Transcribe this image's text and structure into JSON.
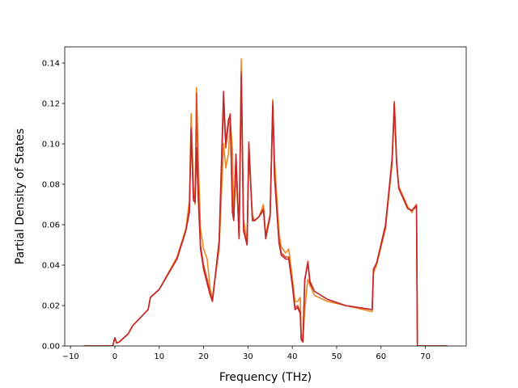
{
  "chart_data": {
    "type": "line",
    "title": "",
    "xlabel": "Frequency (THz)",
    "ylabel": "Partial Density of States",
    "xlim": [
      -11.3,
      79.2
    ],
    "ylim": [
      0.0,
      0.148
    ],
    "grid": false,
    "legend": "none",
    "xticks": [
      -10,
      0,
      10,
      20,
      30,
      40,
      50,
      60,
      70
    ],
    "xtick_labels": [
      "−10",
      "0",
      "10",
      "20",
      "30",
      "40",
      "50",
      "60",
      "70"
    ],
    "yticks": [
      0.0,
      0.02,
      0.04,
      0.06,
      0.08,
      0.1,
      0.12,
      0.14
    ],
    "ytick_labels": [
      "0.00",
      "0.02",
      "0.04",
      "0.06",
      "0.08",
      "0.10",
      "0.12",
      "0.14"
    ],
    "series": [
      {
        "color": "#f0871f",
        "points": [
          [
            -7,
            0.0
          ],
          [
            -0.5,
            0.0
          ],
          [
            0,
            0.004
          ],
          [
            0.4,
            0.0015
          ],
          [
            1,
            0.002
          ],
          [
            3,
            0.006
          ],
          [
            4,
            0.01
          ],
          [
            7.5,
            0.018
          ],
          [
            8,
            0.024
          ],
          [
            10,
            0.028
          ],
          [
            14,
            0.044
          ],
          [
            16,
            0.058
          ],
          [
            16.8,
            0.072
          ],
          [
            17.2,
            0.115
          ],
          [
            17.7,
            0.08
          ],
          [
            18.1,
            0.07
          ],
          [
            18.4,
            0.128
          ],
          [
            18.8,
            0.092
          ],
          [
            19.3,
            0.058
          ],
          [
            20,
            0.048
          ],
          [
            20.8,
            0.043
          ],
          [
            21.5,
            0.028
          ],
          [
            22,
            0.024
          ],
          [
            23.5,
            0.048
          ],
          [
            24.5,
            0.1
          ],
          [
            25,
            0.088
          ],
          [
            25.6,
            0.095
          ],
          [
            26.0,
            0.112
          ],
          [
            26.5,
            0.098
          ],
          [
            26.8,
            0.065
          ],
          [
            27.3,
            0.086
          ],
          [
            28,
            0.056
          ],
          [
            28.5,
            0.142
          ],
          [
            29,
            0.063
          ],
          [
            29.8,
            0.051
          ],
          [
            30.2,
            0.095
          ],
          [
            31,
            0.065
          ],
          [
            31.5,
            0.062
          ],
          [
            32.5,
            0.064
          ],
          [
            33.5,
            0.07
          ],
          [
            34,
            0.055
          ],
          [
            35,
            0.065
          ],
          [
            35.6,
            0.122
          ],
          [
            36,
            0.092
          ],
          [
            37,
            0.056
          ],
          [
            37.5,
            0.049
          ],
          [
            38.5,
            0.046
          ],
          [
            39.2,
            0.048
          ],
          [
            40,
            0.034
          ],
          [
            40.6,
            0.022
          ],
          [
            41.2,
            0.022
          ],
          [
            41.8,
            0.024
          ],
          [
            42,
            0.006
          ],
          [
            42.4,
            0.003
          ],
          [
            42.8,
            0.018
          ],
          [
            43.5,
            0.033
          ],
          [
            44,
            0.03
          ],
          [
            45,
            0.025
          ],
          [
            48,
            0.022
          ],
          [
            52,
            0.02
          ],
          [
            58,
            0.017
          ],
          [
            58.3,
            0.036
          ],
          [
            59,
            0.04
          ],
          [
            61,
            0.058
          ],
          [
            62.5,
            0.09
          ],
          [
            63,
            0.117
          ],
          [
            63.5,
            0.09
          ],
          [
            64,
            0.079
          ],
          [
            66,
            0.069
          ],
          [
            67,
            0.066
          ],
          [
            67.3,
            0.068
          ],
          [
            68,
            0.068
          ],
          [
            68.2,
            0.0
          ],
          [
            75,
            0.0
          ]
        ]
      },
      {
        "color": "#dc4520",
        "points": [
          [
            -7,
            0.0
          ],
          [
            -0.5,
            0.0
          ],
          [
            0,
            0.004
          ],
          [
            0.4,
            0.0015
          ],
          [
            1,
            0.002
          ],
          [
            3,
            0.006
          ],
          [
            4,
            0.01
          ],
          [
            7.5,
            0.018
          ],
          [
            8,
            0.024
          ],
          [
            10,
            0.028
          ],
          [
            14,
            0.043
          ],
          [
            16,
            0.057
          ],
          [
            16.8,
            0.068
          ],
          [
            17.2,
            0.108
          ],
          [
            17.7,
            0.075
          ],
          [
            18.1,
            0.072
          ],
          [
            18.4,
            0.125
          ],
          [
            18.8,
            0.08
          ],
          [
            19.3,
            0.05
          ],
          [
            20,
            0.04
          ],
          [
            20.8,
            0.033
          ],
          [
            21.5,
            0.026
          ],
          [
            22,
            0.023
          ],
          [
            23.5,
            0.05
          ],
          [
            24.5,
            0.12
          ],
          [
            25,
            0.098
          ],
          [
            25.6,
            0.11
          ],
          [
            26.0,
            0.115
          ],
          [
            26.5,
            0.07
          ],
          [
            26.8,
            0.063
          ],
          [
            27.3,
            0.094
          ],
          [
            28,
            0.054
          ],
          [
            28.5,
            0.136
          ],
          [
            29,
            0.058
          ],
          [
            29.8,
            0.05
          ],
          [
            30.2,
            0.101
          ],
          [
            31,
            0.063
          ],
          [
            31.5,
            0.062
          ],
          [
            32.5,
            0.064
          ],
          [
            33.5,
            0.068
          ],
          [
            34,
            0.054
          ],
          [
            35,
            0.065
          ],
          [
            35.6,
            0.121
          ],
          [
            36,
            0.085
          ],
          [
            37,
            0.052
          ],
          [
            37.5,
            0.046
          ],
          [
            38.5,
            0.044
          ],
          [
            39.2,
            0.044
          ],
          [
            40,
            0.031
          ],
          [
            40.6,
            0.019
          ],
          [
            41.2,
            0.02
          ],
          [
            41.8,
            0.017
          ],
          [
            42,
            0.004
          ],
          [
            42.4,
            0.002
          ],
          [
            42.8,
            0.032
          ],
          [
            43.5,
            0.042
          ],
          [
            44,
            0.032
          ],
          [
            45,
            0.027
          ],
          [
            48,
            0.023
          ],
          [
            52,
            0.02
          ],
          [
            58,
            0.018
          ],
          [
            58.3,
            0.038
          ],
          [
            59,
            0.041
          ],
          [
            61,
            0.06
          ],
          [
            62.5,
            0.092
          ],
          [
            63,
            0.121
          ],
          [
            63.5,
            0.092
          ],
          [
            64,
            0.078
          ],
          [
            66,
            0.068
          ],
          [
            67,
            0.067
          ],
          [
            67.3,
            0.068
          ],
          [
            68,
            0.07
          ],
          [
            68.2,
            0.0
          ],
          [
            75,
            0.0
          ]
        ]
      },
      {
        "color": "#c2272d",
        "points": [
          [
            -7,
            0.0
          ],
          [
            -0.5,
            0.0
          ],
          [
            0,
            0.004
          ],
          [
            0.4,
            0.0015
          ],
          [
            1,
            0.002
          ],
          [
            3,
            0.006
          ],
          [
            4,
            0.01
          ],
          [
            7.5,
            0.018
          ],
          [
            8,
            0.024
          ],
          [
            10,
            0.028
          ],
          [
            14,
            0.043
          ],
          [
            16,
            0.057
          ],
          [
            16.8,
            0.066
          ],
          [
            17.2,
            0.107
          ],
          [
            17.7,
            0.072
          ],
          [
            18.1,
            0.071
          ],
          [
            18.4,
            0.098
          ],
          [
            18.8,
            0.073
          ],
          [
            19.3,
            0.048
          ],
          [
            20,
            0.038
          ],
          [
            20.8,
            0.031
          ],
          [
            21.5,
            0.025
          ],
          [
            22,
            0.022
          ],
          [
            23.5,
            0.052
          ],
          [
            24.5,
            0.126
          ],
          [
            25,
            0.1
          ],
          [
            25.6,
            0.112
          ],
          [
            26.0,
            0.114
          ],
          [
            26.5,
            0.066
          ],
          [
            26.8,
            0.062
          ],
          [
            27.3,
            0.095
          ],
          [
            28,
            0.053
          ],
          [
            28.5,
            0.134
          ],
          [
            29,
            0.057
          ],
          [
            29.8,
            0.05
          ],
          [
            30.2,
            0.1
          ],
          [
            31,
            0.062
          ],
          [
            31.5,
            0.062
          ],
          [
            32.5,
            0.064
          ],
          [
            33.5,
            0.067
          ],
          [
            34,
            0.053
          ],
          [
            35,
            0.064
          ],
          [
            35.6,
            0.119
          ],
          [
            36,
            0.083
          ],
          [
            37,
            0.051
          ],
          [
            37.5,
            0.045
          ],
          [
            38.5,
            0.043
          ],
          [
            39.2,
            0.043
          ],
          [
            40,
            0.03
          ],
          [
            40.6,
            0.018
          ],
          [
            41.2,
            0.019
          ],
          [
            41.8,
            0.016
          ],
          [
            42,
            0.003
          ],
          [
            42.4,
            0.002
          ],
          [
            42.8,
            0.033
          ],
          [
            43.5,
            0.041
          ],
          [
            44,
            0.031
          ],
          [
            45,
            0.027
          ],
          [
            48,
            0.023
          ],
          [
            52,
            0.02
          ],
          [
            58,
            0.018
          ],
          [
            58.3,
            0.038
          ],
          [
            59,
            0.041
          ],
          [
            61,
            0.059
          ],
          [
            62.5,
            0.093
          ],
          [
            63,
            0.12
          ],
          [
            63.5,
            0.092
          ],
          [
            64,
            0.078
          ],
          [
            66,
            0.068
          ],
          [
            67,
            0.067
          ],
          [
            67.3,
            0.068
          ],
          [
            68,
            0.069
          ],
          [
            68.2,
            0.0
          ],
          [
            75,
            0.0
          ]
        ]
      }
    ]
  }
}
